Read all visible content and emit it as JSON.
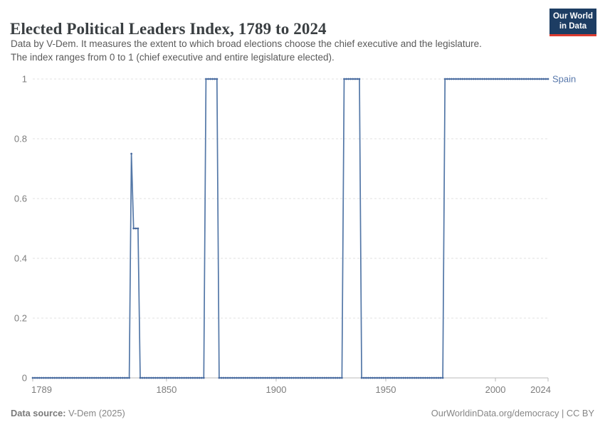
{
  "header": {
    "title": "Elected Political Leaders Index, 1789 to 2024",
    "subtitle_line1": "Data by V-Dem. It measures the extent to which broad elections choose the chief executive and the legislature.",
    "subtitle_line2": "The index ranges from 0 to 1 (chief executive and entire legislature elected)."
  },
  "logo": {
    "line1": "Our World",
    "line2": "in Data",
    "bg_color": "#1d3d63",
    "bar_color": "#dc3b2f"
  },
  "chart_data": {
    "type": "line",
    "title": "Elected Political Leaders Index, 1789 to 2024",
    "xlabel": "",
    "ylabel": "",
    "x": {
      "min": 1789,
      "max": 2024,
      "ticks": [
        1789,
        1850,
        1900,
        1950,
        2000,
        2024
      ]
    },
    "y": {
      "min": 0,
      "max": 1,
      "ticks": [
        0,
        0.2,
        0.4,
        0.6,
        0.8,
        1
      ],
      "tick_labels": [
        "0",
        "0.2",
        "0.4",
        "0.6",
        "0.8",
        "1"
      ]
    },
    "grid": true,
    "gridline_color": "#e0e0e0",
    "axis_color": "#b9b9b9",
    "tick_label_color": "#7d7d7d",
    "legend_position": "end-of-line",
    "series": [
      {
        "name": "Spain",
        "color": "#5377a7",
        "marker_color": "#47699e",
        "label_color": "#5878ab",
        "segments": [
          {
            "from": 1789,
            "to": 1833,
            "value": 0
          },
          {
            "from": 1834,
            "to": 1834,
            "value": 0.75
          },
          {
            "from": 1835,
            "to": 1837,
            "value": 0.5
          },
          {
            "from": 1838,
            "to": 1867,
            "value": 0
          },
          {
            "from": 1868,
            "to": 1873,
            "value": 1
          },
          {
            "from": 1874,
            "to": 1930,
            "value": 0
          },
          {
            "from": 1931,
            "to": 1938,
            "value": 1
          },
          {
            "from": 1939,
            "to": 1976,
            "value": 0
          },
          {
            "from": 1977,
            "to": 2024,
            "value": 1
          }
        ]
      }
    ]
  },
  "footer": {
    "datasource_label": "Data source:",
    "datasource_value": "V-Dem (2025)",
    "credit": "OurWorldinData.org/democracy | CC BY"
  }
}
